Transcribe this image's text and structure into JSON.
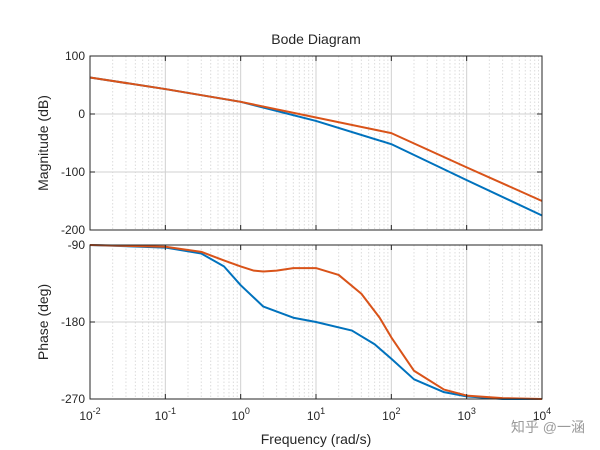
{
  "chart_data": {
    "type": "line",
    "title": "Bode Diagram",
    "xlabel": "Frequency  (rad/s)",
    "x_scale": "log",
    "xlim": [
      0.01,
      10000
    ],
    "x_ticks": [
      {
        "value": 0.01,
        "base": "10",
        "exp": "-2"
      },
      {
        "value": 0.1,
        "base": "10",
        "exp": "-1"
      },
      {
        "value": 1,
        "base": "10",
        "exp": "0"
      },
      {
        "value": 10,
        "base": "10",
        "exp": "1"
      },
      {
        "value": 100,
        "base": "10",
        "exp": "2"
      },
      {
        "value": 1000,
        "base": "10",
        "exp": "3"
      },
      {
        "value": 10000,
        "base": "10",
        "exp": "4"
      }
    ],
    "grid": true,
    "colors": [
      "#0072BD",
      "#D95319"
    ],
    "magnitude": {
      "ylabel": "Magnitude (dB)",
      "ylim": [
        -200,
        100
      ],
      "yticks": [
        100,
        0,
        -100,
        -200
      ],
      "series": [
        {
          "color": "#0072BD",
          "x": [
            0.01,
            0.1,
            1,
            10,
            100,
            1000,
            10000
          ],
          "values": [
            63,
            43,
            21,
            -12,
            -52,
            -114,
            -175
          ]
        },
        {
          "color": "#D95319",
          "x": [
            0.01,
            0.1,
            1,
            10,
            100,
            1000,
            10000
          ],
          "values": [
            63,
            43,
            21,
            -6,
            -33,
            -92,
            -150
          ]
        }
      ]
    },
    "phase": {
      "ylabel": "Phase (deg)",
      "ylim": [
        -270,
        -90
      ],
      "yticks": [
        -90,
        -180,
        -270
      ],
      "series": [
        {
          "color": "#0072BD",
          "x": [
            0.01,
            0.1,
            0.3,
            0.6,
            1,
            2,
            5,
            10,
            30,
            60,
            100,
            200,
            500,
            1000,
            3000,
            10000
          ],
          "values": [
            -90,
            -93,
            -100,
            -115,
            -137,
            -162,
            -175,
            -180,
            -190,
            -206,
            -223,
            -247,
            -262,
            -267,
            -270,
            -270
          ]
        },
        {
          "color": "#D95319",
          "x": [
            0.01,
            0.1,
            0.3,
            0.6,
            1,
            1.5,
            2,
            3,
            5,
            10,
            20,
            40,
            70,
            100,
            200,
            500,
            1000,
            3000,
            10000
          ],
          "values": [
            -90,
            -92,
            -98,
            -108,
            -115,
            -120,
            -121,
            -120,
            -117,
            -117,
            -125,
            -147,
            -175,
            -198,
            -237,
            -259,
            -266,
            -269,
            -270
          ]
        }
      ]
    }
  },
  "watermark": "知乎 @一涵"
}
